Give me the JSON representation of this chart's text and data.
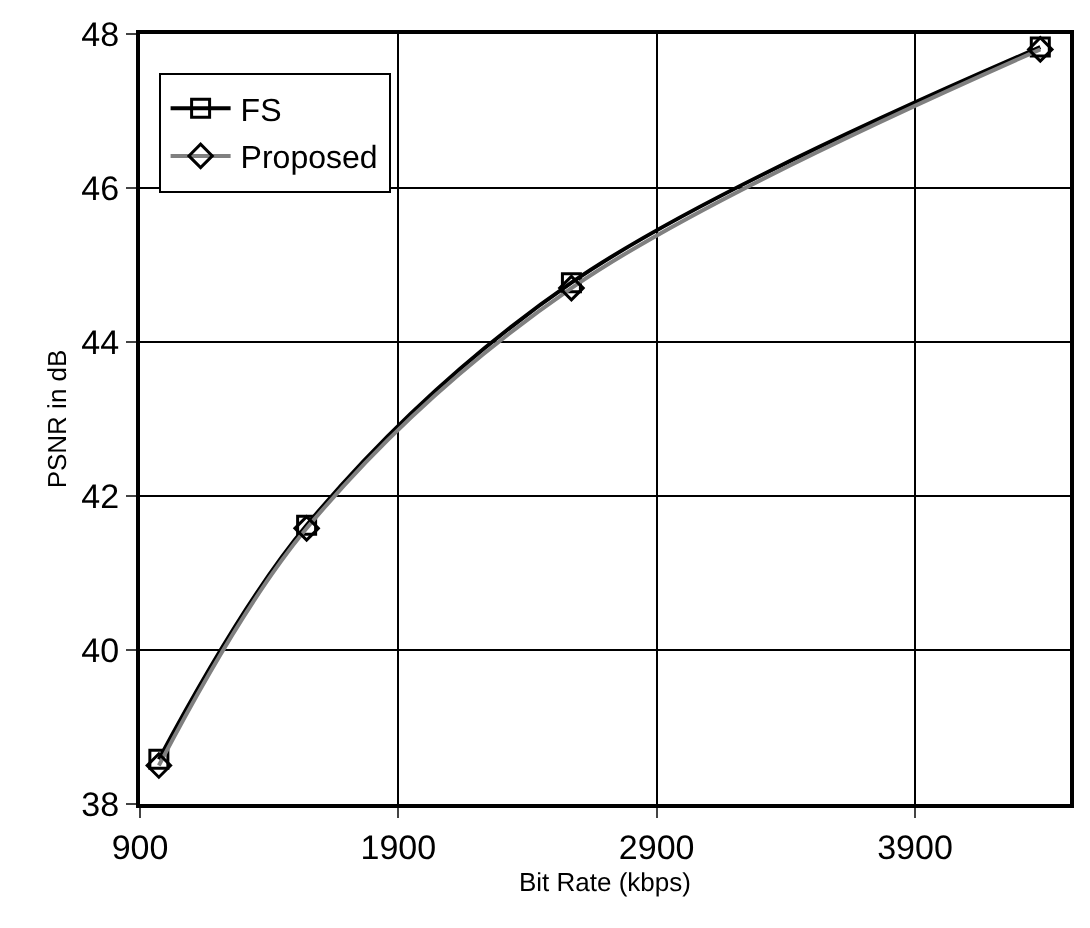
{
  "chart_data": {
    "type": "line",
    "xlabel": "Bit Rate (kbps)",
    "ylabel": "PSNR in dB",
    "x": [
      973,
      1545,
      2570,
      4385
    ],
    "series": [
      {
        "name": "FS",
        "color": "#000000",
        "values": [
          38.58,
          41.62,
          44.77,
          47.83
        ],
        "marker": "square"
      },
      {
        "name": "Proposed",
        "color": "#808080",
        "values": [
          38.5,
          41.58,
          44.7,
          47.8
        ],
        "marker": "diamond"
      }
    ],
    "xlim": [
      900,
      4500
    ],
    "xticks": [
      900,
      1900,
      2900,
      3900
    ],
    "ylim": [
      38,
      48
    ],
    "yticks": [
      38,
      40,
      42,
      44,
      46,
      48
    ],
    "grid": true,
    "legend": "top left",
    "line_style": "solid"
  }
}
